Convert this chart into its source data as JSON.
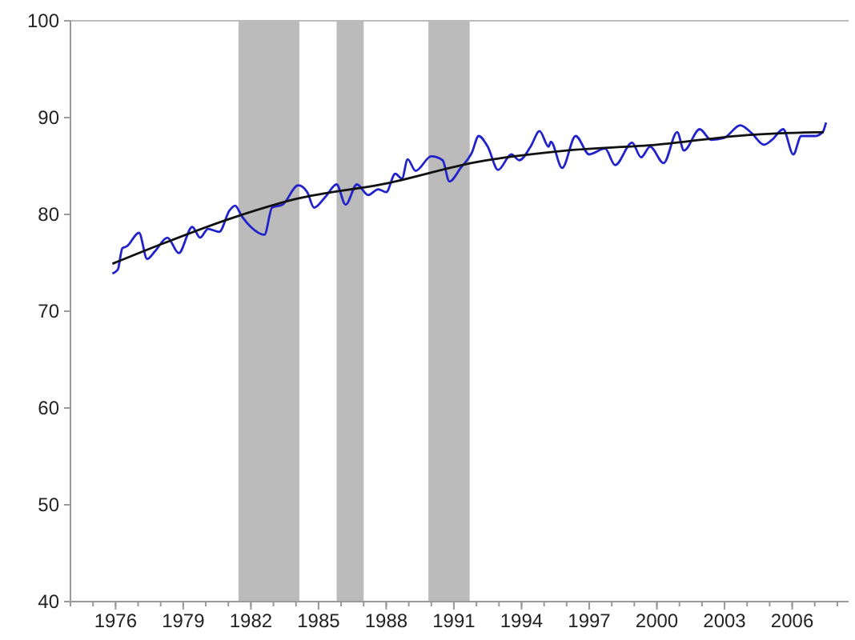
{
  "chart_data": {
    "type": "line",
    "xlim": [
      1974,
      2008.5
    ],
    "ylim": [
      40,
      100
    ],
    "xticks": [
      1976,
      1979,
      1982,
      1985,
      1988,
      1991,
      1994,
      1997,
      2000,
      2003,
      2006
    ],
    "yticks": [
      40,
      50,
      60,
      70,
      80,
      90,
      100
    ],
    "grid": false,
    "line_style": "solid",
    "bands": [
      {
        "axis": "x",
        "from": 1981.45,
        "to": 1984.15,
        "color": "#bbbbbb"
      },
      {
        "axis": "x",
        "from": 1985.8,
        "to": 1987.0,
        "color": "#bbbbbb"
      },
      {
        "axis": "x",
        "from": 1989.87,
        "to": 1991.7,
        "color": "#bbbbbb"
      }
    ],
    "series": [
      {
        "color": "#2222cc",
        "x": [
          1975.86,
          1976.1,
          1976.3,
          1976.5,
          1977.04,
          1977.4,
          1977.75,
          1978.3,
          1978.8,
          1979.4,
          1979.75,
          1980.1,
          1980.6,
          1981.05,
          1981.3,
          1981.6,
          1982.0,
          1982.6,
          1982.94,
          1983.4,
          1984.1,
          1984.5,
          1984.8,
          1985.3,
          1985.8,
          1986.2,
          1986.7,
          1987.2,
          1987.65,
          1988.0,
          1988.4,
          1988.7,
          1988.95,
          1989.3,
          1990.0,
          1990.5,
          1990.8,
          1991.3,
          1991.8,
          1992.1,
          1992.5,
          1992.96,
          1993.55,
          1993.9,
          1994.4,
          1994.8,
          1995.2,
          1995.3,
          1995.8,
          1996.4,
          1997.0,
          1997.7,
          1998.15,
          1998.9,
          1999.3,
          1999.7,
          2000.3,
          2000.9,
          2001.2,
          2001.9,
          2002.4,
          2002.98,
          2003.7,
          2004.2,
          2004.75,
          2005.1,
          2005.6,
          2006.05,
          2006.4,
          2007.0,
          2007.35,
          2007.5
        ],
        "values": [
          73.9,
          74.3,
          76.5,
          76.7,
          78.1,
          75.4,
          76.2,
          77.6,
          76.0,
          78.7,
          77.6,
          78.5,
          78.2,
          80.4,
          80.9,
          79.8,
          78.7,
          77.9,
          80.7,
          81.0,
          83.0,
          82.3,
          80.7,
          81.8,
          83.1,
          81.0,
          83.1,
          82.0,
          82.6,
          82.3,
          84.2,
          83.7,
          85.7,
          84.5,
          86.0,
          85.6,
          83.4,
          84.8,
          86.4,
          88.1,
          87.0,
          84.6,
          86.2,
          85.6,
          87.0,
          88.6,
          87.0,
          87.5,
          84.8,
          88.1,
          86.2,
          86.8,
          85.1,
          87.4,
          85.9,
          87.0,
          85.3,
          88.5,
          86.6,
          88.8,
          87.7,
          87.9,
          89.2,
          88.4,
          87.2,
          87.7,
          88.8,
          86.2,
          88.1,
          88.1,
          88.5,
          89.5
        ]
      },
      {
        "color": "#111111",
        "x": [
          1975.86,
          1978,
          1981,
          1984,
          1988,
          1992,
          1996,
          2000,
          2004,
          2007.4
        ],
        "values": [
          74.9,
          76.9,
          79.5,
          81.6,
          83.2,
          85.4,
          86.6,
          87.2,
          88.2,
          88.5
        ]
      }
    ]
  }
}
